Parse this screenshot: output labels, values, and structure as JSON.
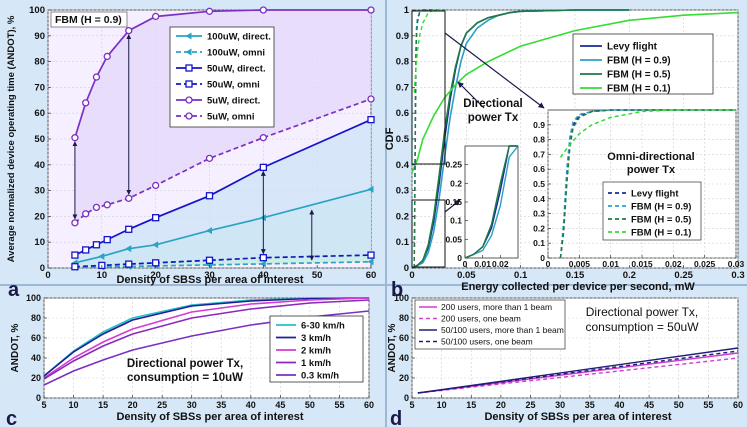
{
  "chart_data": [
    {
      "id": "a",
      "type": "line",
      "panel_label": "a",
      "annotation": "FBM (H = 0.9)",
      "xlabel": "Density of SBSs per area of interest",
      "ylabel": "Average normalized device operating time (ANDOT), %",
      "xlim": [
        0,
        60
      ],
      "ylim": [
        0,
        100
      ],
      "xticks": [
        "0",
        "10",
        "20",
        "30",
        "40",
        "50",
        "60"
      ],
      "yticks": [
        "0",
        "10",
        "20",
        "30",
        "40",
        "50",
        "60",
        "70",
        "80",
        "90",
        "100"
      ],
      "legend_position": "top-right",
      "grid": true,
      "series": [
        {
          "name": "100uW, direct.",
          "color": "#2ba3c4",
          "dash": "",
          "marker": "tri",
          "x": [
            5,
            10,
            15,
            20,
            30,
            40,
            60
          ],
          "values": [
            2,
            4.5,
            7.5,
            9,
            14.5,
            19.5,
            30.5
          ]
        },
        {
          "name": "100uW, omni",
          "color": "#2ba3c4",
          "dash": "5,3",
          "marker": "tri",
          "x": [
            5,
            10,
            15,
            20,
            30,
            40,
            60
          ],
          "values": [
            0.2,
            0.4,
            0.6,
            0.8,
            1.2,
            1.6,
            2.4
          ]
        },
        {
          "name": "50uW, direct.",
          "color": "#1414c8",
          "dash": "",
          "marker": "sq",
          "x": [
            5,
            7,
            9,
            11,
            15,
            20,
            30,
            40,
            60
          ],
          "values": [
            5,
            7,
            9,
            11,
            15,
            19.5,
            28,
            39,
            57.5
          ]
        },
        {
          "name": "50uW, omni",
          "color": "#1414c8",
          "dash": "5,3",
          "marker": "sq",
          "x": [
            5,
            10,
            15,
            20,
            30,
            40,
            60
          ],
          "values": [
            0.5,
            1,
            1.5,
            2,
            3,
            4,
            5
          ]
        },
        {
          "name": "5uW, direct.",
          "color": "#7a30c0",
          "dash": "",
          "marker": "circ",
          "x": [
            5,
            7,
            9,
            11,
            15,
            20,
            30,
            40,
            60
          ],
          "values": [
            50.5,
            64,
            74,
            82,
            92,
            97.5,
            99.5,
            100,
            100
          ]
        },
        {
          "name": "5uW, omni",
          "color": "#7a30c0",
          "dash": "5,3",
          "marker": "circ",
          "x": [
            5,
            7,
            9,
            11,
            15,
            20,
            30,
            40,
            60
          ],
          "values": [
            17.5,
            21,
            23.5,
            24.5,
            27,
            32,
            42.5,
            50.5,
            65.5
          ]
        }
      ]
    },
    {
      "id": "b",
      "type": "line",
      "panel_label": "b",
      "xlabel": "Energy collected per device per second, mW",
      "ylabel": "CDF",
      "xlim": [
        0,
        0.3
      ],
      "ylim": [
        0,
        1
      ],
      "xticks": [
        "0",
        "0.05",
        "0.1",
        "0.15",
        "0.2",
        "0.25",
        "0.3"
      ],
      "yticks": [
        "0",
        "0.1",
        "0.2",
        "0.3",
        "0.4",
        "0.5",
        "0.6",
        "0.7",
        "0.8",
        "0.9",
        "1"
      ],
      "annotations": [
        "Directional",
        "power Tx"
      ],
      "legend_position": "top-right",
      "series": [
        {
          "name": "Levy flight",
          "color": "#1a2a9a",
          "x": [
            0,
            0.005,
            0.01,
            0.015,
            0.02,
            0.025,
            0.03,
            0.035,
            0.04,
            0.045,
            0.05,
            0.06,
            0.07,
            0.08,
            0.09,
            0.1,
            0.15,
            0.2
          ],
          "values": [
            0,
            0.01,
            0.03,
            0.08,
            0.18,
            0.33,
            0.5,
            0.65,
            0.77,
            0.86,
            0.91,
            0.95,
            0.97,
            0.98,
            0.99,
            0.995,
            1,
            1
          ]
        },
        {
          "name": "FBM (H = 0.9)",
          "color": "#2aa0c8",
          "x": [
            0,
            0.005,
            0.01,
            0.015,
            0.02,
            0.025,
            0.03,
            0.035,
            0.04,
            0.045,
            0.05,
            0.06,
            0.07,
            0.08,
            0.09,
            0.1,
            0.15,
            0.2
          ],
          "values": [
            0,
            0.01,
            0.02,
            0.06,
            0.14,
            0.27,
            0.43,
            0.58,
            0.7,
            0.8,
            0.87,
            0.93,
            0.96,
            0.98,
            0.99,
            0.995,
            1,
            1
          ]
        },
        {
          "name": "FBM (H = 0.5)",
          "color": "#1f7a46",
          "x": [
            0,
            0.005,
            0.01,
            0.015,
            0.02,
            0.025,
            0.03,
            0.035,
            0.04,
            0.045,
            0.05,
            0.06,
            0.07,
            0.08,
            0.09,
            0.1,
            0.15,
            0.2
          ],
          "values": [
            0,
            0.01,
            0.03,
            0.09,
            0.2,
            0.36,
            0.53,
            0.67,
            0.78,
            0.86,
            0.91,
            0.95,
            0.97,
            0.98,
            0.99,
            0.995,
            1,
            1
          ]
        },
        {
          "name": "FBM (H = 0.1)",
          "color": "#33dd33",
          "x": [
            0,
            0.005,
            0.01,
            0.02,
            0.03,
            0.04,
            0.05,
            0.07,
            0.1,
            0.15,
            0.2,
            0.25,
            0.3
          ],
          "values": [
            0.37,
            0.42,
            0.5,
            0.59,
            0.66,
            0.71,
            0.75,
            0.8,
            0.86,
            0.92,
            0.96,
            0.98,
            0.99
          ]
        }
      ],
      "inset_directional": {
        "xlim": [
          0,
          0.03
        ],
        "ylim": [
          0,
          0.3
        ],
        "xticks": [
          "0",
          "0.01",
          "0.02"
        ],
        "yticks": [
          "0",
          "0.05",
          "0.1",
          "0.15",
          "0.2",
          "0.25"
        ]
      },
      "inset_omni": {
        "title": [
          "Omni-directional",
          "power Tx"
        ],
        "xlim": [
          0,
          0.03
        ],
        "ylim": [
          0,
          1
        ],
        "xticks": [
          "0",
          "0.005",
          "0.01",
          "0.015",
          "0.02",
          "0.025",
          "0.03"
        ],
        "yticks": [
          "0",
          "0.1",
          "0.2",
          "0.3",
          "0.4",
          "0.5",
          "0.6",
          "0.7",
          "0.8",
          "0.9"
        ],
        "legend_position": "bottom-right",
        "series": [
          {
            "name": "Levy flight",
            "color": "#1a2a9a",
            "x": [
              0.002,
              0.0025,
              0.003,
              0.0035,
              0.004,
              0.005,
              0.007,
              0.01,
              0.02,
              0.03
            ],
            "values": [
              0,
              0.2,
              0.55,
              0.78,
              0.9,
              0.96,
              0.99,
              1,
              1,
              1
            ]
          },
          {
            "name": "FBM (H = 0.9)",
            "color": "#2aa0c8",
            "x": [
              0.002,
              0.0025,
              0.003,
              0.0035,
              0.004,
              0.005,
              0.007,
              0.01,
              0.02,
              0.03
            ],
            "values": [
              0,
              0.25,
              0.6,
              0.82,
              0.92,
              0.97,
              0.99,
              1,
              1,
              1
            ]
          },
          {
            "name": "FBM (H = 0.5)",
            "color": "#1f7a46",
            "x": [
              0.002,
              0.0025,
              0.003,
              0.0035,
              0.004,
              0.005,
              0.007,
              0.01,
              0.02,
              0.03
            ],
            "values": [
              0,
              0.18,
              0.5,
              0.75,
              0.88,
              0.95,
              0.99,
              1,
              1,
              1
            ]
          },
          {
            "name": "FBM (H = 0.1)",
            "color": "#33dd33",
            "x": [
              0.002,
              0.003,
              0.004,
              0.005,
              0.007,
              0.01,
              0.015,
              0.02,
              0.025,
              0.03
            ],
            "values": [
              0.68,
              0.74,
              0.79,
              0.84,
              0.9,
              0.95,
              0.99,
              1,
              1,
              1
            ]
          }
        ]
      }
    },
    {
      "id": "c",
      "type": "line",
      "panel_label": "c",
      "annotation": [
        "Directional power Tx,",
        "consumption = 10uW"
      ],
      "xlabel": "Density of SBSs per area of interest",
      "ylabel": "ANDOT, %",
      "xlim": [
        5,
        60
      ],
      "ylim": [
        0,
        100
      ],
      "xticks": [
        "5",
        "10",
        "15",
        "20",
        "25",
        "30",
        "35",
        "40",
        "45",
        "50",
        "55",
        "60"
      ],
      "yticks": [
        "0",
        "20",
        "40",
        "60",
        "80",
        "100"
      ],
      "legend_position": "top-right",
      "series": [
        {
          "name": "6-30 km/h",
          "color": "#22c0c8",
          "x": [
            5,
            10,
            15,
            20,
            30,
            40,
            50,
            60
          ],
          "values": [
            22,
            47,
            66,
            80,
            93,
            98,
            99.5,
            100
          ]
        },
        {
          "name": "3 km/h",
          "color": "#1e1e9a",
          "x": [
            5,
            10,
            15,
            20,
            30,
            40,
            50,
            60
          ],
          "values": [
            22,
            46,
            64,
            78,
            92,
            97,
            99.5,
            100
          ]
        },
        {
          "name": "2 km/h",
          "color": "#d23cd2",
          "x": [
            5,
            10,
            15,
            20,
            30,
            40,
            50,
            60
          ],
          "values": [
            20,
            40,
            56,
            69,
            86,
            94,
            98,
            100
          ]
        },
        {
          "name": "1 km/h",
          "color": "#8c28be",
          "x": [
            5,
            10,
            15,
            20,
            30,
            40,
            50,
            60
          ],
          "values": [
            19,
            37,
            52,
            64,
            80,
            89,
            95,
            98
          ]
        },
        {
          "name": "0.3 km/h",
          "color": "#7a30c0",
          "x": [
            5,
            10,
            15,
            20,
            30,
            40,
            50,
            60
          ],
          "values": [
            13,
            27,
            38,
            48,
            62,
            73,
            81,
            87
          ]
        }
      ]
    },
    {
      "id": "d",
      "type": "line",
      "panel_label": "d",
      "annotation": [
        "Directional power Tx,",
        "consumption = 50uW"
      ],
      "xlabel": "Density of SBSs per area of interest",
      "ylabel": "ANDOT, %",
      "xlim": [
        5,
        60
      ],
      "ylim": [
        0,
        100
      ],
      "xticks": [
        "5",
        "10",
        "15",
        "20",
        "25",
        "30",
        "35",
        "40",
        "45",
        "50",
        "55",
        "60"
      ],
      "yticks": [
        "0",
        "20",
        "40",
        "60",
        "80",
        "100"
      ],
      "legend_position": "top-left",
      "series": [
        {
          "name": "200 users, more than 1 beam",
          "color": "#d23cd2",
          "dash": "",
          "x": [
            6,
            60
          ],
          "values": [
            5,
            45
          ]
        },
        {
          "name": "200 users, one beam",
          "color": "#d23cd2",
          "dash": "4,3",
          "x": [
            6,
            60
          ],
          "values": [
            5,
            40
          ]
        },
        {
          "name": "50/100 users, more than 1 beam",
          "color": "#1e1e7a",
          "dash": "",
          "x": [
            6,
            60
          ],
          "values": [
            5,
            50
          ]
        },
        {
          "name": "50/100 users, one beam",
          "color": "#1e1e7a",
          "dash": "4,3",
          "x": [
            6,
            60
          ],
          "values": [
            5,
            47
          ]
        }
      ]
    }
  ]
}
